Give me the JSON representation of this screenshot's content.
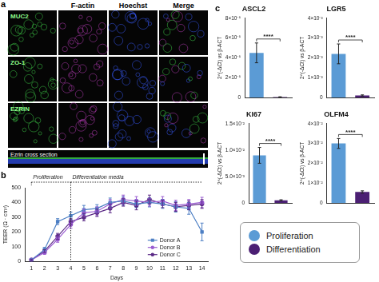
{
  "figure": {
    "panel_a": {
      "panel": "a",
      "columns": [
        "F-actin",
        "Hoechst",
        "Merge"
      ],
      "rows": [
        "MUC2",
        "ZO-1",
        "EZRIN"
      ],
      "cross_section": "Ezrin cross section"
    },
    "panel_c_legend": {
      "entries": [
        {
          "name": "Proliferation",
          "color": "#5b9bd5"
        },
        {
          "name": "Differentiation",
          "color": "#4b1f73"
        }
      ]
    }
  },
  "chart_data": [
    {
      "panel": "b",
      "type": "line",
      "xlabel": "Days",
      "ylabel": "TEER (Ω · cm²)",
      "x": [
        1,
        2,
        3,
        4,
        5,
        6,
        7,
        8,
        9,
        10,
        11,
        12,
        13,
        14
      ],
      "xlim": [
        0.5,
        14.5
      ],
      "xticks": [
        1,
        2,
        3,
        4,
        5,
        6,
        7,
        8,
        9,
        10,
        11,
        12,
        13,
        14
      ],
      "ylim": [
        0,
        500
      ],
      "yticks": [
        0,
        100,
        200,
        300,
        400,
        500
      ],
      "grid": false,
      "legend": "lower right",
      "annotations": [
        {
          "text": "Proliferation",
          "x": [
            1,
            4
          ]
        },
        {
          "text": "Differentiation media",
          "x": [
            4,
            14
          ]
        }
      ],
      "series": [
        {
          "name": "Donor A",
          "color": "#4d7fc4",
          "marker": "square",
          "values": [
            10,
            80,
            270,
            310,
            350,
            360,
            400,
            410,
            390,
            400,
            390,
            370,
            360,
            200
          ],
          "errors": [
            5,
            15,
            20,
            25,
            30,
            25,
            30,
            30,
            25,
            30,
            30,
            35,
            40,
            60
          ]
        },
        {
          "name": "Donor B",
          "color": "#9a5cd0",
          "marker": "circle",
          "values": [
            10,
            60,
            150,
            250,
            330,
            340,
            390,
            420,
            410,
            400,
            410,
            380,
            390,
            400
          ],
          "errors": [
            5,
            10,
            20,
            25,
            25,
            30,
            30,
            30,
            30,
            25,
            30,
            35,
            30,
            35
          ]
        },
        {
          "name": "Donor C",
          "color": "#5b2a86",
          "marker": "circle",
          "values": [
            10,
            70,
            170,
            270,
            300,
            330,
            360,
            400,
            380,
            420,
            390,
            370,
            380,
            390
          ],
          "errors": [
            5,
            10,
            20,
            20,
            25,
            25,
            30,
            25,
            30,
            30,
            25,
            30,
            30,
            30
          ]
        }
      ]
    },
    {
      "panel": "c",
      "type": "bar",
      "title": "ASCL2",
      "ylabel": "2^(-ΔCt) vs β-ACT",
      "categories": [
        null,
        null
      ],
      "values": [
        4.5e-05,
        5e-07
      ],
      "errors": [
        1e-05,
        2e-07
      ],
      "colors": [
        "#5b9bd5",
        "#4b1f73"
      ],
      "ylim": [
        0,
        8e-05
      ],
      "yticks": [
        0,
        {
          "value": 2e-05,
          "label": "2×10⁻⁵"
        },
        {
          "value": 4e-05,
          "label": "4×10⁻⁵"
        },
        {
          "value": 6e-05,
          "label": "6×10⁻⁵"
        },
        {
          "value": 8e-05,
          "label": "8×10⁻⁵"
        }
      ],
      "grid": false,
      "tick_labels": "y",
      "annotations": [
        "****"
      ]
    },
    {
      "type": "bar",
      "title": "LGR5",
      "ylabel": "2^(-ΔCt) vs β-ACT",
      "categories": [
        null,
        null
      ],
      "values": [
        0.0022,
        0.0001
      ],
      "errors": [
        0.0005,
        3e-05
      ],
      "colors": [
        "#5b9bd5",
        "#4b1f73"
      ],
      "ylim": [
        0,
        0.004
      ],
      "yticks": [
        0,
        {
          "value": 0.001,
          "label": "1×10⁻³"
        },
        {
          "value": 0.002,
          "label": "2×10⁻³"
        },
        {
          "value": 0.003,
          "label": "3×10⁻³"
        },
        {
          "value": 0.004,
          "label": "4×10⁻³"
        }
      ],
      "grid": false,
      "tick_labels": "y",
      "annotations": [
        "****"
      ]
    },
    {
      "type": "bar",
      "title": "KI67",
      "ylabel": "2^(-ΔCt) vs β-ACT",
      "categories": [
        null,
        null
      ],
      "values": [
        0.009,
        0.0005
      ],
      "errors": [
        0.0015,
        0.0001
      ],
      "colors": [
        "#5b9bd5",
        "#4b1f73"
      ],
      "ylim": [
        0,
        0.015
      ],
      "yticks": [
        0,
        {
          "value": 0.005,
          "label": "5.0×10⁻³"
        },
        {
          "value": 0.01,
          "label": "1.0×10⁻²"
        },
        {
          "value": 0.015,
          "label": "1.5×10⁻²"
        }
      ],
      "grid": false,
      "tick_labels": "y",
      "annotations": [
        "****"
      ]
    },
    {
      "type": "bar",
      "title": "OLFM4",
      "ylabel": "2^(-ΔCt) vs β-ACT",
      "categories": [
        null,
        null
      ],
      "values": [
        0.03,
        0.0055
      ],
      "errors": [
        0.0025,
        0.0006
      ],
      "colors": [
        "#5b9bd5",
        "#4b1f73"
      ],
      "ylim": [
        0,
        0.04
      ],
      "yticks": [
        0,
        {
          "value": 0.01,
          "label": "1×10⁻²"
        },
        {
          "value": 0.02,
          "label": "2×10⁻²"
        },
        {
          "value": 0.03,
          "label": "3×10⁻²"
        },
        {
          "value": 0.04,
          "label": "4×10⁻²"
        }
      ],
      "grid": false,
      "tick_labels": "y",
      "annotations": [
        "****"
      ]
    }
  ]
}
